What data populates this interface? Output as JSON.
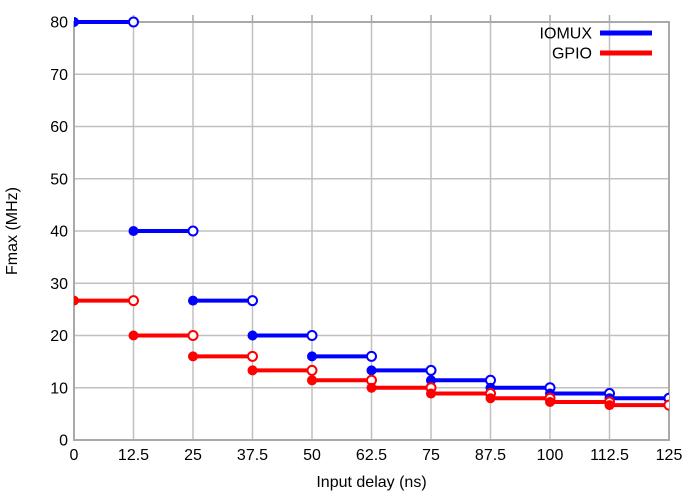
{
  "chart_data": {
    "type": "line",
    "subtype": "step-intervals",
    "title": "",
    "xlabel": "Input delay (ns)",
    "ylabel": "Fmax (MHz)",
    "xlim": [
      0,
      125
    ],
    "ylim": [
      0,
      80
    ],
    "xticks": [
      0,
      12.5,
      25,
      37.5,
      50,
      62.5,
      75,
      87.5,
      100,
      112.5,
      125
    ],
    "yticks": [
      0,
      10,
      20,
      30,
      40,
      50,
      60,
      70,
      80
    ],
    "grid": true,
    "legend_position": "top-right-inside",
    "x_edges": [
      0,
      12.5,
      25,
      37.5,
      50,
      62.5,
      75,
      87.5,
      100,
      112.5,
      125
    ],
    "series": [
      {
        "name": "IOMUX",
        "color": "#0000ff",
        "marker_start": "filled-circle",
        "marker_end": "open-circle",
        "values": [
          80,
          40,
          26.67,
          20,
          16,
          13.33,
          11.43,
          10,
          8.89,
          8
        ]
      },
      {
        "name": "GPIO",
        "color": "#ff0000",
        "marker_start": "filled-circle",
        "marker_end": "open-circle",
        "values": [
          26.67,
          20,
          16,
          13.33,
          11.43,
          10,
          8.89,
          8,
          7.27,
          6.67
        ]
      }
    ],
    "colors": {
      "grid": "#c0c0c0",
      "border": "#a9a9a9",
      "text": "#000000",
      "background": "#ffffff"
    }
  }
}
